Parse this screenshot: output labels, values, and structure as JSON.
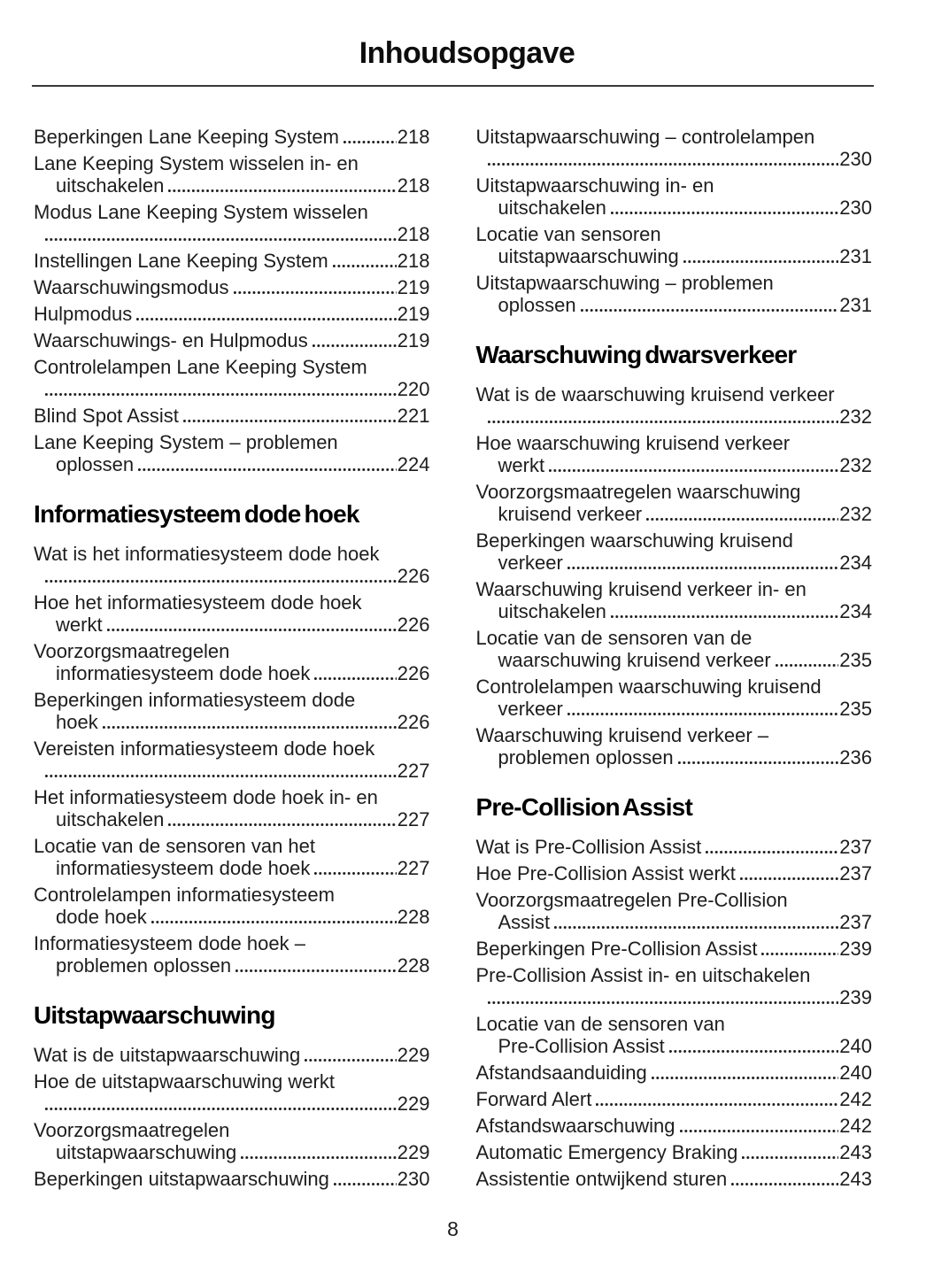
{
  "page": {
    "title": "Inhoudsopgave",
    "page_number": "8"
  },
  "columns": [
    {
      "blocks": [
        {
          "type": "entries",
          "items": [
            {
              "pre": [],
              "last": "Beperkingen Lane Keeping System",
              "page": "218"
            },
            {
              "pre": [
                "Lane Keeping System wisselen in- en"
              ],
              "last": "uitschakelen",
              "page": "218"
            },
            {
              "pre": [
                "Modus Lane Keeping System wisselen"
              ],
              "last": "",
              "page": "218"
            },
            {
              "pre": [],
              "last": "Instellingen Lane Keeping System",
              "page": "218"
            },
            {
              "pre": [],
              "last": "Waarschuwingsmodus",
              "page": "219"
            },
            {
              "pre": [],
              "last": "Hulpmodus",
              "page": "219"
            },
            {
              "pre": [],
              "last": "Waarschuwings- en Hulpmodus",
              "page": "219"
            },
            {
              "pre": [
                "Controlelampen Lane Keeping System"
              ],
              "last": "",
              "page": "220"
            },
            {
              "pre": [],
              "last": "Blind Spot Assist",
              "page": "221"
            },
            {
              "pre": [
                "Lane Keeping System – problemen"
              ],
              "last": "oplossen",
              "page": "224"
            }
          ]
        },
        {
          "type": "heading",
          "text": "Informatiesysteem dode hoek"
        },
        {
          "type": "entries",
          "items": [
            {
              "pre": [
                "Wat is het informatiesysteem dode hoek"
              ],
              "last": "",
              "page": "226"
            },
            {
              "pre": [
                "Hoe het informatiesysteem dode hoek"
              ],
              "last": "werkt",
              "page": "226"
            },
            {
              "pre": [
                "Voorzorgsmaatregelen"
              ],
              "last": "informatiesysteem dode hoek",
              "page": "226"
            },
            {
              "pre": [
                "Beperkingen informatiesysteem dode"
              ],
              "last": "hoek",
              "page": "226"
            },
            {
              "pre": [
                "Vereisten informatiesysteem dode hoek"
              ],
              "last": "",
              "page": "227"
            },
            {
              "pre": [
                "Het informatiesysteem dode hoek in- en"
              ],
              "last": "uitschakelen",
              "page": "227"
            },
            {
              "pre": [
                "Locatie van de sensoren van het"
              ],
              "last": "informatiesysteem dode hoek",
              "page": "227"
            },
            {
              "pre": [
                "Controlelampen informatiesysteem"
              ],
              "last": "dode hoek",
              "page": "228"
            },
            {
              "pre": [
                "Informatiesysteem dode hoek –"
              ],
              "last": "problemen oplossen",
              "page": "228"
            }
          ]
        },
        {
          "type": "heading",
          "text": "Uitstapwaarschuwing"
        },
        {
          "type": "entries",
          "items": [
            {
              "pre": [],
              "last": "Wat is de uitstapwaarschuwing",
              "page": "229"
            },
            {
              "pre": [
                "Hoe de uitstapwaarschuwing werkt"
              ],
              "last": "",
              "page": "229"
            },
            {
              "pre": [
                "Voorzorgsmaatregelen"
              ],
              "last": "uitstapwaarschuwing",
              "page": "229"
            },
            {
              "pre": [],
              "last": "Beperkingen uitstapwaarschuwing",
              "page": "230"
            }
          ]
        }
      ]
    },
    {
      "blocks": [
        {
          "type": "entries",
          "items": [
            {
              "pre": [
                "Uitstapwaarschuwing – controlelampen"
              ],
              "last": "",
              "page": "230"
            },
            {
              "pre": [
                "Uitstapwaarschuwing in- en"
              ],
              "last": "uitschakelen",
              "page": "230"
            },
            {
              "pre": [
                "Locatie van sensoren"
              ],
              "last": "uitstapwaarschuwing",
              "page": "231"
            },
            {
              "pre": [
                "Uitstapwaarschuwing – problemen"
              ],
              "last": "oplossen",
              "page": "231"
            }
          ]
        },
        {
          "type": "heading",
          "text": "Waarschuwing dwarsverkeer"
        },
        {
          "type": "entries",
          "items": [
            {
              "pre": [
                "Wat is de waarschuwing kruisend verkeer"
              ],
              "last": "",
              "page": "232"
            },
            {
              "pre": [
                "Hoe waarschuwing kruisend verkeer"
              ],
              "last": "werkt",
              "page": "232"
            },
            {
              "pre": [
                "Voorzorgsmaatregelen waarschuwing"
              ],
              "last": "kruisend verkeer",
              "page": "232"
            },
            {
              "pre": [
                "Beperkingen waarschuwing kruisend"
              ],
              "last": "verkeer",
              "page": "234"
            },
            {
              "pre": [
                "Waarschuwing kruisend verkeer in- en"
              ],
              "last": "uitschakelen",
              "page": "234"
            },
            {
              "pre": [
                "Locatie van de sensoren van de"
              ],
              "last": "waarschuwing kruisend verkeer",
              "page": "235"
            },
            {
              "pre": [
                "Controlelampen waarschuwing kruisend"
              ],
              "last": "verkeer",
              "page": "235"
            },
            {
              "pre": [
                "Waarschuwing kruisend verkeer –"
              ],
              "last": "problemen oplossen",
              "page": "236"
            }
          ]
        },
        {
          "type": "heading",
          "text": "Pre-Collision Assist"
        },
        {
          "type": "entries",
          "items": [
            {
              "pre": [],
              "last": "Wat is Pre-Collision Assist",
              "page": "237"
            },
            {
              "pre": [],
              "last": "Hoe Pre-Collision Assist werkt",
              "page": "237"
            },
            {
              "pre": [
                "Voorzorgsmaatregelen Pre-Collision"
              ],
              "last": "Assist",
              "page": "237"
            },
            {
              "pre": [],
              "last": "Beperkingen Pre-Collision Assist",
              "page": "239"
            },
            {
              "pre": [
                "Pre-Collision Assist in- en uitschakelen"
              ],
              "last": "",
              "page": "239"
            },
            {
              "pre": [
                "Locatie van de sensoren van"
              ],
              "last": "Pre-Collision Assist",
              "page": "240"
            },
            {
              "pre": [],
              "last": "Afstandsaanduiding",
              "page": "240"
            },
            {
              "pre": [],
              "last": "Forward Alert",
              "page": "242"
            },
            {
              "pre": [],
              "last": "Afstandswaarschuwing",
              "page": "242"
            },
            {
              "pre": [],
              "last": "Automatic Emergency Braking",
              "page": "243"
            },
            {
              "pre": [],
              "last": "Assistentie ontwijkend sturen",
              "page": "243"
            }
          ]
        }
      ]
    }
  ]
}
